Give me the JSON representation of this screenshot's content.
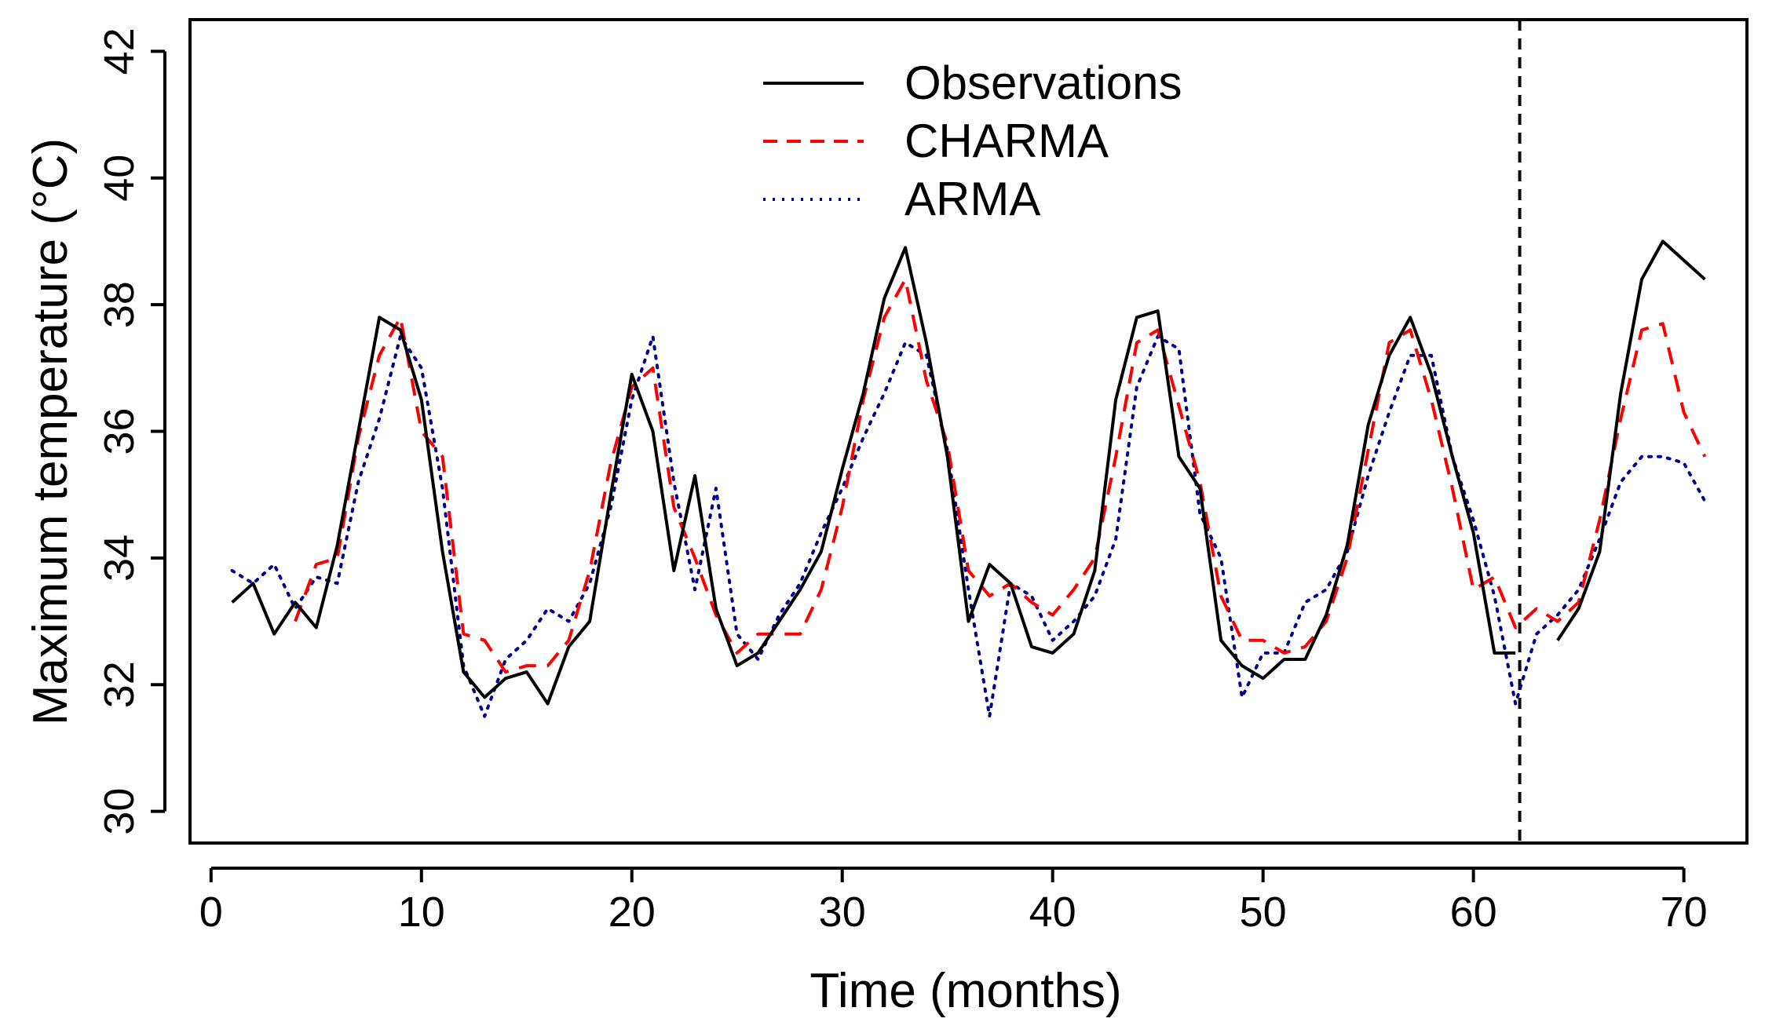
{
  "chart_data": {
    "type": "line",
    "title": "",
    "xlabel": "Time (months)",
    "ylabel": "Maximum temperature (°C)",
    "xlim": [
      -1,
      73
    ],
    "ylim": [
      29.5,
      42.5
    ],
    "x_ticks": [
      0,
      10,
      20,
      30,
      40,
      50,
      60,
      70
    ],
    "y_ticks": [
      30,
      32,
      34,
      36,
      38,
      40,
      42
    ],
    "x_tick_labels": [
      "0",
      "10",
      "20",
      "30",
      "40",
      "50",
      "60",
      "70"
    ],
    "y_tick_labels": [
      "30",
      "32",
      "34",
      "36",
      "38",
      "40",
      "42"
    ],
    "vline_x": 62.2,
    "legend_position": "top-center",
    "legend": [
      "Observations",
      "CHARMA",
      "ARMA"
    ],
    "series": [
      {
        "name": "Observations",
        "color": "#000000",
        "style": "solid",
        "x": [
          1,
          2,
          3,
          4,
          5,
          6,
          7,
          8,
          9,
          10,
          11,
          12,
          13,
          14,
          15,
          16,
          17,
          18,
          19,
          20,
          21,
          22,
          23,
          24,
          25,
          26,
          27,
          28,
          29,
          30,
          31,
          32,
          33,
          34,
          35,
          36,
          37,
          38,
          39,
          40,
          41,
          42,
          43,
          44,
          45,
          46,
          47,
          48,
          49,
          50,
          51,
          52,
          53,
          54,
          55,
          56,
          57,
          58,
          59,
          60,
          61,
          62,
          null,
          64,
          65,
          66,
          67,
          68,
          69,
          70,
          71
        ],
        "values": [
          33.3,
          33.6,
          32.8,
          33.3,
          32.9,
          34.2,
          36.0,
          37.8,
          37.6,
          36.5,
          34.1,
          32.2,
          31.8,
          32.1,
          32.2,
          31.7,
          32.6,
          33.0,
          35.0,
          36.9,
          36.0,
          33.8,
          35.3,
          33.2,
          32.3,
          32.5,
          33.0,
          33.5,
          34.1,
          35.4,
          36.6,
          38.1,
          38.9,
          37.4,
          35.6,
          33.0,
          33.9,
          33.6,
          32.6,
          32.5,
          32.8,
          33.8,
          36.5,
          37.8,
          37.9,
          35.6,
          35.1,
          32.7,
          32.3,
          32.1,
          32.4,
          32.4,
          33.1,
          34.2,
          36.1,
          37.2,
          37.8,
          36.9,
          35.6,
          34.4,
          32.5,
          32.5,
          null,
          32.7,
          33.2,
          34.1,
          36.6,
          38.4,
          39.0,
          38.7,
          38.4
        ]
      },
      {
        "name": "CHARMA",
        "color": "#ff0000",
        "style": "dashed",
        "x": [
          4,
          5,
          6,
          7,
          8,
          9,
          10,
          11,
          12,
          13,
          14,
          15,
          16,
          17,
          18,
          19,
          20,
          21,
          22,
          23,
          24,
          25,
          26,
          27,
          28,
          29,
          30,
          31,
          32,
          33,
          34,
          35,
          36,
          37,
          38,
          39,
          40,
          41,
          42,
          43,
          44,
          45,
          46,
          47,
          48,
          49,
          50,
          51,
          52,
          53,
          54,
          55,
          56,
          57,
          58,
          59,
          60,
          61,
          62,
          63,
          64,
          65,
          66,
          67,
          68,
          69,
          70,
          71
        ],
        "values": [
          33.0,
          33.9,
          34.0,
          35.9,
          37.2,
          37.8,
          36.0,
          35.6,
          32.8,
          32.7,
          32.2,
          32.3,
          32.3,
          32.7,
          33.8,
          35.5,
          36.7,
          37.0,
          34.8,
          34.0,
          33.1,
          32.5,
          32.8,
          32.8,
          32.8,
          33.5,
          34.8,
          36.5,
          37.8,
          38.4,
          36.8,
          35.8,
          33.8,
          33.4,
          33.6,
          33.3,
          33.1,
          33.5,
          34.0,
          35.6,
          37.4,
          37.6,
          36.4,
          35.2,
          33.4,
          32.7,
          32.7,
          32.5,
          32.6,
          33.0,
          34.0,
          35.7,
          37.4,
          37.6,
          36.5,
          35.1,
          33.5,
          33.7,
          32.9,
          33.2,
          33.0,
          33.3,
          34.6,
          36.2,
          37.6,
          37.7,
          36.3,
          35.6
        ]
      },
      {
        "name": "ARMA",
        "color": "#00008b",
        "style": "dotted",
        "x": [
          1,
          2,
          3,
          4,
          5,
          6,
          7,
          8,
          9,
          10,
          11,
          12,
          13,
          14,
          15,
          16,
          17,
          18,
          19,
          20,
          21,
          22,
          23,
          24,
          25,
          26,
          27,
          28,
          29,
          30,
          31,
          32,
          33,
          34,
          35,
          36,
          37,
          38,
          39,
          40,
          41,
          42,
          43,
          44,
          45,
          46,
          47,
          48,
          49,
          50,
          51,
          52,
          53,
          54,
          55,
          56,
          57,
          58,
          59,
          60,
          61,
          62,
          63,
          64,
          65,
          66,
          67,
          68,
          69,
          70,
          71
        ],
        "values": [
          33.8,
          33.6,
          33.9,
          33.2,
          33.7,
          33.6,
          35.2,
          36.2,
          37.5,
          37.0,
          35.1,
          32.3,
          31.5,
          32.4,
          32.7,
          33.2,
          33.0,
          33.6,
          34.8,
          36.5,
          37.5,
          35.2,
          33.5,
          35.1,
          32.8,
          32.4,
          33.1,
          33.6,
          34.4,
          35.1,
          35.9,
          36.6,
          37.4,
          37.2,
          35.7,
          33.5,
          31.5,
          33.6,
          33.4,
          32.7,
          33.0,
          33.4,
          34.3,
          36.7,
          37.5,
          37.3,
          34.7,
          34.0,
          31.8,
          32.5,
          32.5,
          33.3,
          33.5,
          34.1,
          35.3,
          36.3,
          37.2,
          37.2,
          35.6,
          34.6,
          33.4,
          31.7,
          32.8,
          33.1,
          33.5,
          34.3,
          35.2,
          35.6,
          35.6,
          35.5,
          34.9
        ]
      }
    ]
  }
}
